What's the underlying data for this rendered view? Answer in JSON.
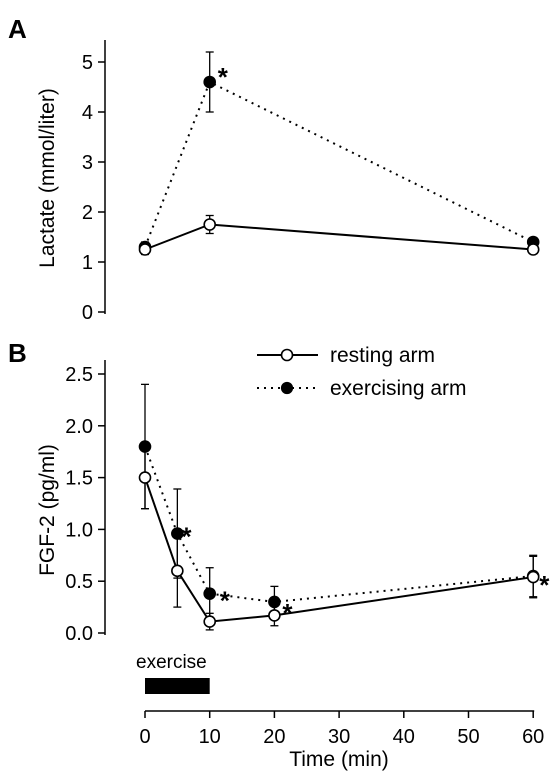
{
  "chart_data": [
    {
      "panel_label": "A",
      "type": "line",
      "ylabel": "Lactate (mmol/liter)",
      "ylim": [
        0,
        5
      ],
      "yticks": [
        "0",
        "1",
        "2",
        "3",
        "4",
        "5"
      ],
      "x": [
        0,
        10,
        60
      ],
      "series": [
        {
          "name": "resting arm",
          "marker": "open-circle",
          "line": "solid",
          "values": [
            1.25,
            1.75,
            1.25
          ],
          "errors": [
            0.1,
            0.18,
            0.08
          ]
        },
        {
          "name": "exercising arm",
          "marker": "filled-circle",
          "line": "dotted",
          "values": [
            1.3,
            4.6,
            1.4
          ],
          "errors": [
            0.1,
            0.6,
            0.08
          ]
        }
      ],
      "annotations": [
        {
          "x": 10,
          "text": "*"
        }
      ]
    },
    {
      "panel_label": "B",
      "type": "line",
      "ylabel": "FGF-2 (pg/ml)",
      "xlabel": "Time (min)",
      "ylim": [
        0,
        2.5
      ],
      "yticks": [
        "0.0",
        "0.5",
        "1.0",
        "1.5",
        "2.0",
        "2.5"
      ],
      "xlim": [
        0,
        60
      ],
      "xticks": [
        "0",
        "10",
        "20",
        "30",
        "40",
        "50",
        "60"
      ],
      "x": [
        0,
        5,
        10,
        20,
        60
      ],
      "series": [
        {
          "name": "resting arm",
          "marker": "open-circle",
          "line": "solid",
          "values": [
            1.5,
            0.6,
            0.11,
            0.17,
            0.54
          ],
          "errors": [
            0.3,
            0.35,
            0.08,
            0.1,
            0.2
          ]
        },
        {
          "name": "exercising arm",
          "marker": "filled-circle",
          "line": "dotted",
          "values": [
            1.8,
            0.96,
            0.38,
            0.3,
            0.55
          ],
          "errors": [
            0.6,
            0.43,
            0.25,
            0.15,
            0.2
          ]
        }
      ],
      "annotations": [
        {
          "x": 5,
          "text": "*"
        },
        {
          "x": 10,
          "text": "*"
        },
        {
          "x": 20,
          "text": "*"
        },
        {
          "x": 60,
          "text": "*"
        }
      ],
      "exercise_bar": {
        "label": "exercise",
        "start": 0,
        "end": 10
      }
    }
  ],
  "legend": {
    "items": [
      {
        "label": "resting arm",
        "marker": "open-circle",
        "line": "solid"
      },
      {
        "label": "exercising arm",
        "marker": "filled-circle",
        "line": "dotted"
      }
    ]
  }
}
